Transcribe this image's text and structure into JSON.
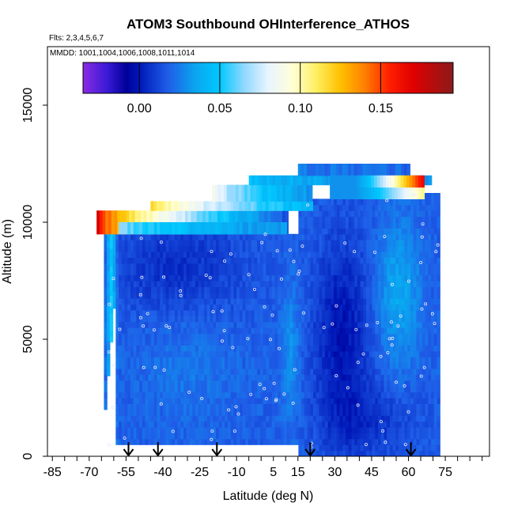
{
  "chart_data": {
    "type": "heatmap",
    "title": "ATOM3 Southbound OHInterference_ATHOS",
    "flights_label": "Flts: 2,3,4,5,6,7",
    "dates_label": "MMDD: 1001,1004,1006,1008,1011,1014",
    "xlabel": "Latitude (deg N)",
    "ylabel": "Altitude (m)",
    "xlim": [
      -87,
      93
    ],
    "ylim": [
      0,
      17500
    ],
    "x_ticks": [
      -85,
      -80,
      -75,
      -70,
      -65,
      -60,
      -55,
      -50,
      -45,
      -40,
      -35,
      -30,
      -25,
      -20,
      -15,
      -10,
      -5,
      0,
      5,
      10,
      15,
      20,
      25,
      30,
      35,
      40,
      45,
      50,
      55,
      60,
      65,
      70,
      75,
      80,
      85,
      90
    ],
    "x_tick_labels": [
      {
        "value": -85,
        "label": "-85"
      },
      {
        "value": -70,
        "label": "-70"
      },
      {
        "value": -55,
        "label": "-55"
      },
      {
        "value": -40,
        "label": "-40"
      },
      {
        "value": -25,
        "label": "-25"
      },
      {
        "value": -10,
        "label": "-10"
      },
      {
        "value": 5,
        "label": "5"
      },
      {
        "value": 15,
        "label": "15"
      },
      {
        "value": 30,
        "label": "30"
      },
      {
        "value": 45,
        "label": "45"
      },
      {
        "value": 60,
        "label": "60"
      },
      {
        "value": 75,
        "label": "75"
      }
    ],
    "y_ticks": [
      {
        "value": 0,
        "label": "0"
      },
      {
        "value": 5000,
        "label": "5000"
      },
      {
        "value": 10000,
        "label": "10000"
      },
      {
        "value": 15000,
        "label": "15000"
      }
    ],
    "colorbar": {
      "min": -0.035,
      "max": 0.195,
      "ticks": [
        {
          "value": 0.0,
          "label": "0.00"
        },
        {
          "value": 0.05,
          "label": "0.05"
        },
        {
          "value": 0.1,
          "label": "0.10"
        },
        {
          "value": 0.15,
          "label": "0.15"
        }
      ],
      "stops": [
        {
          "value": -0.035,
          "color": "#8a2be2"
        },
        {
          "value": -0.02,
          "color": "#3a1ad6"
        },
        {
          "value": -0.008,
          "color": "#000099"
        },
        {
          "value": 0.0,
          "color": "#0018b8"
        },
        {
          "value": 0.018,
          "color": "#1f5ee8"
        },
        {
          "value": 0.035,
          "color": "#0aa6f0"
        },
        {
          "value": 0.05,
          "color": "#00c8ff"
        },
        {
          "value": 0.065,
          "color": "#8fd8ff"
        },
        {
          "value": 0.08,
          "color": "#e8f4ff"
        },
        {
          "value": 0.095,
          "color": "#ffffd8"
        },
        {
          "value": 0.11,
          "color": "#ffef60"
        },
        {
          "value": 0.125,
          "color": "#ffc000"
        },
        {
          "value": 0.14,
          "color": "#ff8000"
        },
        {
          "value": 0.155,
          "color": "#ff2000"
        },
        {
          "value": 0.17,
          "color": "#e00000"
        },
        {
          "value": 0.195,
          "color": "#8b1a1a"
        }
      ]
    },
    "profile_markers_lat": [
      -54,
      -42,
      -18,
      20,
      61
    ]
  }
}
